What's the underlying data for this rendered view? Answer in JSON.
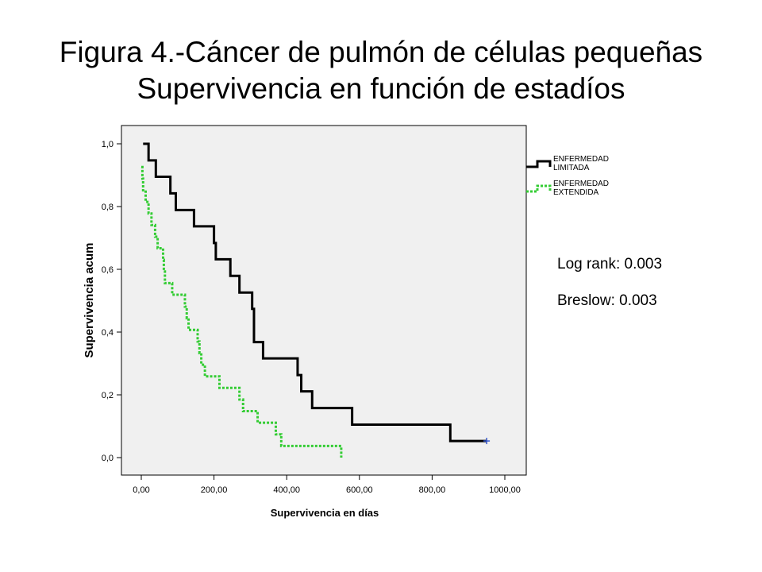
{
  "title_line1": "Figura 4.-Cáncer de pulmón de células pequeñas",
  "title_line2": "Supervivencia en función de estadíos",
  "stats": {
    "log_rank": "Log rank: 0.003",
    "breslow": "Breslow: 0.003"
  },
  "colors": {
    "plot_background": "#f0f0f0",
    "limitada": "#000000",
    "extendida": "#33cc33",
    "censor_mark": "#3355cc"
  },
  "chart_data": {
    "type": "line",
    "title": "",
    "xlabel": "Supervivencia en días",
    "ylabel": "Supervivencia acum",
    "xlim": [
      0,
      1000
    ],
    "ylim": [
      0,
      1
    ],
    "x_ticks": [
      "0,00",
      "200,00",
      "400,00",
      "600,00",
      "800,00",
      "1000,00"
    ],
    "y_ticks": [
      "0,0",
      "0,2",
      "0,4",
      "0,6",
      "0,8",
      "1,0"
    ],
    "legend_position": "right, outside plot",
    "grid": false,
    "series": [
      {
        "name": "ENFERMEDAD LIMITADA",
        "legend_lines": [
          "ENFERMEDAD",
          "LIMITADA"
        ],
        "style": "solid",
        "step_points": [
          [
            5,
            1.0
          ],
          [
            20,
            0.947
          ],
          [
            40,
            0.895
          ],
          [
            80,
            0.842
          ],
          [
            95,
            0.789
          ],
          [
            145,
            0.737
          ],
          [
            200,
            0.684
          ],
          [
            205,
            0.632
          ],
          [
            245,
            0.579
          ],
          [
            270,
            0.526
          ],
          [
            305,
            0.474
          ],
          [
            310,
            0.368
          ],
          [
            335,
            0.316
          ],
          [
            430,
            0.263
          ],
          [
            440,
            0.211
          ],
          [
            470,
            0.158
          ],
          [
            580,
            0.105
          ],
          [
            850,
            0.053
          ],
          [
            950,
            0.053
          ]
        ],
        "censored_at": [
          [
            950,
            0.053
          ]
        ]
      },
      {
        "name": "ENFERMEDAD EXTENDIDA",
        "legend_lines": [
          "ENFERMEDAD",
          "EXTENDIDA"
        ],
        "style": "dotted",
        "step_points": [
          [
            0,
            0.926
          ],
          [
            3,
            0.889
          ],
          [
            5,
            0.852
          ],
          [
            12,
            0.815
          ],
          [
            20,
            0.778
          ],
          [
            28,
            0.741
          ],
          [
            38,
            0.704
          ],
          [
            45,
            0.667
          ],
          [
            60,
            0.63
          ],
          [
            62,
            0.593
          ],
          [
            65,
            0.556
          ],
          [
            85,
            0.519
          ],
          [
            120,
            0.481
          ],
          [
            125,
            0.444
          ],
          [
            130,
            0.407
          ],
          [
            155,
            0.37
          ],
          [
            160,
            0.333
          ],
          [
            165,
            0.296
          ],
          [
            175,
            0.259
          ],
          [
            215,
            0.222
          ],
          [
            270,
            0.185
          ],
          [
            280,
            0.148
          ],
          [
            320,
            0.111
          ],
          [
            370,
            0.074
          ],
          [
            385,
            0.037
          ],
          [
            550,
            0.037
          ],
          [
            550,
            0.0
          ]
        ]
      }
    ]
  }
}
